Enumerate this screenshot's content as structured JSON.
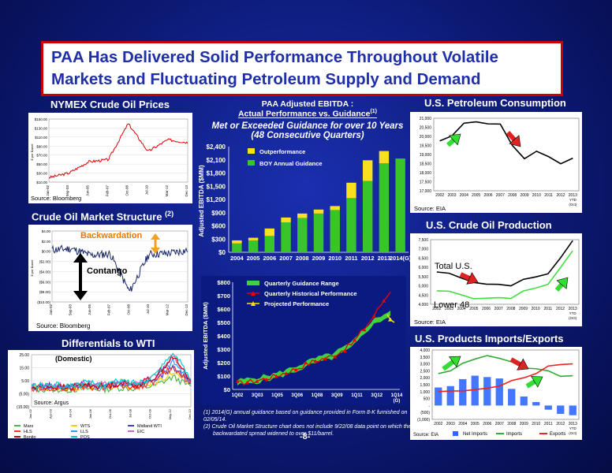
{
  "title": {
    "line1": "PAA Has Delivered Solid Performance Throughout Volatile",
    "line2": "Markets and Fluctuating Petroleum Supply and Demand"
  },
  "nymex": {
    "heading": "NYMEX Crude Oil Prices",
    "source": "Source: Bloomberg",
    "y_label": "$ per Barrel",
    "y_ticks": [
      "$150.00",
      "$130.00",
      "$110.00",
      "$90.00",
      "$70.00",
      "$50.00",
      "$30.00",
      "$10.00"
    ],
    "x_ticks": [
      "Jan-02",
      "Sep-03",
      "Jun-05",
      "Feb-07",
      "Oct-08",
      "Jul-10",
      "Mar-12",
      "Dec-13"
    ]
  },
  "structure": {
    "heading": "Crude Oil Market Structure",
    "sup": "(2)",
    "source": "Source: Bloomberg",
    "backwardation": "Backwardation",
    "contango": "Contango",
    "y_label": "$ per Barrel",
    "y_ticks": [
      "$4.00",
      "$2.00",
      "$0.00",
      "($2.00)",
      "($4.00)",
      "($6.00)",
      "($8.00)",
      "($10.00)"
    ],
    "x_ticks": [
      "Jan-02",
      "Sep-03",
      "Jun-05",
      "Feb-07",
      "Oct-08",
      "Jul-10",
      "Mar-12",
      "Dec-13"
    ]
  },
  "differentials": {
    "heading": "Differentials to WTI",
    "source": "Source: Argus",
    "domestic": "(Domestic)",
    "y_ticks": [
      "25.00",
      "15.00",
      "5.00",
      "(5.00)",
      "(15.00)"
    ],
    "x_ticks": [
      "Jan-02",
      "Apr-03",
      "Jul-04",
      "Jan-06",
      "Oct-06",
      "Jul-08",
      "Oct-09",
      "May-12",
      "Dec-13"
    ],
    "legend": [
      {
        "name": "Mars",
        "color": "#4db84d"
      },
      {
        "name": "WTS",
        "color": "#ffcc00"
      },
      {
        "name": "Midland WTI",
        "color": "#4040c0"
      },
      {
        "name": "HLS",
        "color": "#ff3333"
      },
      {
        "name": "LLS",
        "color": "#3399ff"
      },
      {
        "name": "EIC",
        "color": "#cc66cc"
      },
      {
        "name": "Bonito",
        "color": "#cc0000"
      },
      {
        "name": "POS",
        "color": "#00cccc"
      }
    ]
  },
  "ebitda": {
    "heading1": "PAA Adjusted EBITDA :",
    "heading2": "Actual Performance vs. Guidance",
    "heading2_sup": "(1)",
    "subtitle1": "Met or Exceeded Guidance for over 10 Years",
    "subtitle2": "(48 Consecutive Quarters)",
    "y_label": "Adjusted EBITDA ($MM)",
    "footnote1": "(1) 2014(G) annual guidance based on guidance provided in Form 8-K furnished on 02/05/14.",
    "footnote2": "(2) Crude Oil Market Structure chart does not include 9/22/08 data point on which the",
    "footnote3": "backwardated spread widened to over $11/barrel."
  },
  "quarterly": {
    "y_label": "Adjusted EBITDA ($MM)",
    "legend_range": "Quarterly Guidance Range",
    "legend_hist": "Quarterly Historical Performance",
    "legend_proj": "Projected Performance",
    "y_ticks": [
      "$800",
      "$700",
      "$600",
      "$500",
      "$400",
      "$300",
      "$200",
      "$100",
      "$0"
    ],
    "x_ticks": [
      "1Q02",
      "3Q03",
      "1Q05",
      "3Q06",
      "1Q08",
      "3Q09",
      "1Q11",
      "3Q12",
      "1Q14"
    ],
    "x_sub": "(G)"
  },
  "consumption": {
    "heading": "U.S. Petroleum Consumption",
    "source": "Source: EIA",
    "y_ticks": [
      "21,000",
      "20,500",
      "20,000",
      "19,500",
      "19,000",
      "18,500",
      "18,000",
      "17,500",
      "17,000"
    ],
    "x_ticks": [
      "2002",
      "2003",
      "2004",
      "2005",
      "2006",
      "2007",
      "2008",
      "2009",
      "2010",
      "2011",
      "2012",
      "2013"
    ],
    "x_last_sub": "YTD (Oct)"
  },
  "production": {
    "heading": "U.S. Crude Oil Production",
    "source": "Source: EIA",
    "total_label": "Total U.S.",
    "lower48_label": "Lower 48",
    "y_ticks": [
      "7,500",
      "7,000",
      "6,500",
      "6,000",
      "5,500",
      "5,000",
      "4,500",
      "4,000"
    ],
    "x_ticks": [
      "2002",
      "2003",
      "2004",
      "2005",
      "2006",
      "2007",
      "2008",
      "2009",
      "2010",
      "2011",
      "2012",
      "2013"
    ],
    "x_last_sub": "YTD (Oct)"
  },
  "imports": {
    "heading": "U.S. Products Imports/Exports",
    "source": "Source: EIA",
    "y_ticks": [
      "4,000",
      "3,500",
      "3,000",
      "2,500",
      "2,000",
      "1,500",
      "1,000",
      "500",
      "-",
      "(500)",
      "(1,000)"
    ],
    "x_ticks": [
      "2002",
      "2003",
      "2004",
      "2005",
      "2006",
      "2007",
      "2008",
      "2009",
      "2010",
      "2011",
      "2012",
      "2013"
    ],
    "x_last_sub": "YTD (Oct)",
    "legend": [
      {
        "name": "Net Imports",
        "color": "#3366ff"
      },
      {
        "name": "Imports",
        "color": "#33aa33"
      },
      {
        "name": "Exports",
        "color": "#ee2222"
      }
    ]
  },
  "page_number": "-8-",
  "chart_data": [
    {
      "type": "line",
      "title": "NYMEX Crude Oil Prices",
      "ylabel": "$ per Barrel",
      "ylim": [
        10,
        150
      ],
      "x": [
        "Jan-02",
        "Sep-03",
        "Jun-05",
        "Feb-07",
        "Oct-08",
        "Jul-10",
        "Mar-12",
        "Dec-13"
      ],
      "series": [
        {
          "values": [
            20,
            30,
            55,
            60,
            140,
            78,
            104,
            98
          ]
        }
      ]
    },
    {
      "type": "line",
      "title": "Crude Oil Market Structure",
      "ylabel": "$ per Barrel",
      "ylim": [
        -10,
        4
      ],
      "x": [
        "Jan-02",
        "Sep-03",
        "Jun-05",
        "Feb-07",
        "Oct-08",
        "Jul-10",
        "Mar-12",
        "Dec-13"
      ],
      "series": [
        {
          "values": [
            0.3,
            0.5,
            -0.8,
            -0.5,
            -8,
            -0.6,
            -0.4,
            0.2
          ]
        }
      ]
    },
    {
      "type": "bar",
      "title": "PAA Adjusted EBITDA",
      "ylabel": "Adjusted EBITDA ($MM)",
      "ylim": [
        0,
        2400
      ],
      "categories": [
        "2004",
        "2005",
        "2006",
        "2007",
        "2008",
        "2009",
        "2010",
        "2011",
        "2012",
        "2013",
        "2014(G)"
      ],
      "series": [
        {
          "name": "BOY Annual Guidance",
          "values": [
            200,
            270,
            370,
            680,
            780,
            880,
            960,
            1230,
            1620,
            2020,
            2130
          ]
        },
        {
          "name": "Outperformance",
          "values": [
            70,
            60,
            170,
            110,
            100,
            90,
            90,
            350,
            470,
            280,
            0
          ]
        }
      ]
    },
    {
      "type": "line",
      "title": "Quarterly EBITDA",
      "ylabel": "Adjusted EBITDA ($MM)",
      "ylim": [
        0,
        800
      ],
      "x": [
        "1Q02",
        "3Q03",
        "1Q05",
        "3Q06",
        "1Q08",
        "3Q09",
        "1Q11",
        "3Q12",
        "1Q14"
      ],
      "series": [
        {
          "name": "Quarterly Guidance Range",
          "values": [
            40,
            60,
            90,
            140,
            200,
            240,
            320,
            480,
            560
          ]
        },
        {
          "name": "Quarterly Historical Performance",
          "values": [
            45,
            65,
            100,
            150,
            210,
            250,
            340,
            520,
            740
          ]
        },
        {
          "name": "Projected Performance",
          "values": [
            0,
            0,
            0,
            0,
            0,
            0,
            0,
            0,
            520
          ]
        }
      ]
    },
    {
      "type": "line",
      "title": "U.S. Petroleum Consumption",
      "ylim": [
        17000,
        21000
      ],
      "x": [
        "2002",
        "2003",
        "2004",
        "2005",
        "2006",
        "2007",
        "2008",
        "2009",
        "2010",
        "2011",
        "2012",
        "2013"
      ],
      "series": [
        {
          "values": [
            19750,
            20030,
            20730,
            20800,
            20690,
            20680,
            19500,
            18770,
            19180,
            18880,
            18490,
            18800
          ]
        }
      ]
    },
    {
      "type": "line",
      "title": "U.S. Crude Oil Production",
      "ylim": [
        4000,
        7500
      ],
      "x": [
        "2002",
        "2003",
        "2004",
        "2005",
        "2006",
        "2007",
        "2008",
        "2009",
        "2010",
        "2011",
        "2012",
        "2013"
      ],
      "series": [
        {
          "name": "Total U.S.",
          "values": [
            5750,
            5680,
            5420,
            5180,
            5090,
            5080,
            5000,
            5350,
            5480,
            5650,
            6500,
            7450
          ]
        },
        {
          "name": "Lower 48",
          "values": [
            4730,
            4710,
            4510,
            4300,
            4330,
            4360,
            4320,
            4720,
            4880,
            5080,
            5980,
            6900
          ]
        }
      ]
    },
    {
      "type": "bar",
      "title": "U.S. Products Imports/Exports",
      "ylim": [
        -1000,
        4000
      ],
      "categories": [
        "2002",
        "2003",
        "2004",
        "2005",
        "2006",
        "2007",
        "2008",
        "2009",
        "2010",
        "2011",
        "2012",
        "2013"
      ],
      "series": [
        {
          "name": "Net Imports",
          "values": [
            1300,
            1400,
            1900,
            2150,
            2050,
            1950,
            1200,
            650,
            250,
            -300,
            -600,
            -700
          ]
        },
        {
          "name": "Imports",
          "values": [
            2300,
            2500,
            3050,
            3350,
            3600,
            3400,
            3150,
            2700,
            2650,
            2500,
            2100,
            2150
          ]
        },
        {
          "name": "Exports",
          "values": [
            1000,
            1050,
            1050,
            1150,
            1250,
            1400,
            1800,
            2000,
            2300,
            2850,
            2950,
            3000
          ]
        }
      ]
    }
  ]
}
